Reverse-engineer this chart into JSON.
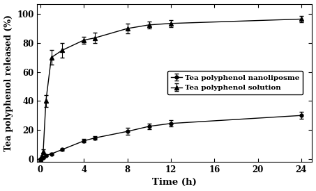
{
  "nano_x": [
    0,
    0.1,
    0.25,
    0.5,
    1,
    2,
    4,
    5,
    8,
    10,
    12,
    24
  ],
  "nano_y": [
    0,
    0.5,
    1.0,
    2.5,
    3.5,
    6.5,
    12.5,
    14.5,
    19.0,
    22.5,
    24.5,
    30.0
  ],
  "nano_yerr": [
    0.2,
    0.3,
    0.4,
    0.5,
    0.7,
    0.8,
    1.2,
    1.3,
    2.5,
    2.0,
    2.2,
    2.5
  ],
  "sol_x": [
    0,
    0.1,
    0.25,
    0.5,
    1,
    2,
    4,
    5,
    8,
    10,
    12,
    24
  ],
  "sol_y": [
    0,
    2.0,
    5.0,
    40.0,
    70.0,
    75.0,
    82.0,
    83.5,
    90.0,
    92.5,
    93.5,
    96.5
  ],
  "sol_yerr": [
    0.2,
    0.5,
    1.5,
    4.0,
    5.0,
    5.0,
    2.5,
    3.5,
    3.5,
    2.5,
    2.5,
    2.0
  ],
  "xlabel": "Time (h)",
  "ylabel": "Tea polyphenol released (%)",
  "nano_label": "Tea polyphenol nanoliposme",
  "sol_label": "Tea polyphenol solution",
  "xlim": [
    -0.3,
    25
  ],
  "ylim": [
    -2,
    107
  ],
  "xticks": [
    0,
    4,
    8,
    12,
    16,
    20,
    24
  ],
  "yticks": [
    0,
    20,
    40,
    60,
    80,
    100
  ],
  "line_color": "#000000",
  "bg_color": "#ffffff",
  "legend_fontsize": 7.5,
  "axis_fontsize": 9.5,
  "tick_fontsize": 8.5
}
